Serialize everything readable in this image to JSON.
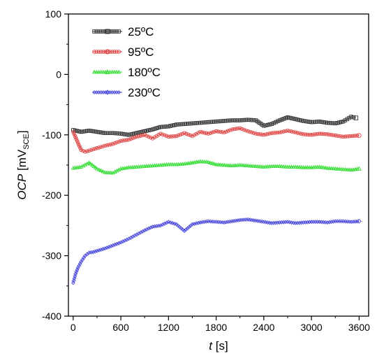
{
  "chart_data": {
    "type": "line",
    "xlabel": {
      "var": "t",
      "unit": " [s]"
    },
    "ylabel": {
      "var": "OCP",
      "pre": " [mV",
      "sub": "SCE",
      "post": "]"
    },
    "xlim": [
      -60,
      3720
    ],
    "ylim": [
      -400,
      100
    ],
    "xticks": [
      0,
      600,
      1200,
      1800,
      2400,
      3000,
      3600
    ],
    "xtick_labels": [
      "0",
      "600",
      "1200",
      "1800",
      "2400",
      "3000",
      "3600"
    ],
    "yticks": [
      100,
      0,
      -100,
      -200,
      -300,
      -400
    ],
    "ytick_labels": [
      "100",
      "0",
      "-100",
      "-200",
      "-300",
      "-400"
    ],
    "legend": "top-left",
    "grid": false,
    "series": [
      {
        "name": "25ºC",
        "color": "#333333",
        "marker": "square",
        "x": [
          0,
          100,
          200,
          300,
          400,
          500,
          600,
          700,
          800,
          900,
          1000,
          1100,
          1200,
          1300,
          1400,
          1500,
          1600,
          1700,
          1800,
          1900,
          2000,
          2100,
          2200,
          2300,
          2400,
          2500,
          2600,
          2700,
          2800,
          2900,
          3000,
          3100,
          3200,
          3300,
          3400,
          3500,
          3560
        ],
        "y": [
          -92,
          -95,
          -93,
          -95,
          -97,
          -97,
          -98,
          -100,
          -97,
          -94,
          -91,
          -87,
          -86,
          -83,
          -82,
          -81,
          -80,
          -79,
          -78,
          -77,
          -76,
          -76,
          -75,
          -76,
          -85,
          -82,
          -76,
          -71,
          -74,
          -77,
          -79,
          -78,
          -80,
          -81,
          -78,
          -70,
          -72
        ]
      },
      {
        "name": "95ºC",
        "color": "#e04040",
        "marker": "circle",
        "x": [
          0,
          50,
          100,
          150,
          200,
          300,
          400,
          500,
          600,
          700,
          800,
          900,
          1000,
          1100,
          1200,
          1300,
          1400,
          1500,
          1600,
          1700,
          1800,
          1900,
          2000,
          2100,
          2200,
          2300,
          2400,
          2500,
          2600,
          2700,
          2800,
          2900,
          3000,
          3100,
          3200,
          3300,
          3400,
          3500,
          3600
        ],
        "y": [
          -95,
          -110,
          -125,
          -128,
          -126,
          -122,
          -118,
          -115,
          -110,
          -108,
          -103,
          -100,
          -106,
          -98,
          -103,
          -102,
          -97,
          -102,
          -95,
          -98,
          -94,
          -96,
          -91,
          -89,
          -94,
          -98,
          -100,
          -97,
          -96,
          -93,
          -96,
          -99,
          -100,
          -98,
          -99,
          -101,
          -103,
          -102,
          -101
        ]
      },
      {
        "name": "180ºC",
        "color": "#33dd33",
        "marker": "triangle",
        "x": [
          0,
          100,
          200,
          300,
          400,
          500,
          600,
          700,
          800,
          900,
          1000,
          1100,
          1200,
          1300,
          1400,
          1500,
          1600,
          1700,
          1800,
          1900,
          2000,
          2100,
          2200,
          2300,
          2400,
          2500,
          2600,
          2700,
          2800,
          2900,
          3000,
          3100,
          3200,
          3300,
          3400,
          3500,
          3600
        ],
        "y": [
          -155,
          -153,
          -146,
          -156,
          -162,
          -163,
          -156,
          -154,
          -153,
          -152,
          -151,
          -150,
          -149,
          -149,
          -148,
          -146,
          -144,
          -145,
          -149,
          -150,
          -151,
          -150,
          -151,
          -152,
          -153,
          -152,
          -152,
          -153,
          -153,
          -154,
          -154,
          -153,
          -155,
          -156,
          -157,
          -158,
          -156
        ]
      },
      {
        "name": "230ºC",
        "color": "#4444dd",
        "marker": "diamond",
        "x": [
          0,
          30,
          60,
          100,
          150,
          200,
          250,
          300,
          400,
          500,
          600,
          700,
          800,
          900,
          1000,
          1100,
          1200,
          1300,
          1400,
          1500,
          1600,
          1700,
          1800,
          1900,
          2000,
          2100,
          2200,
          2300,
          2400,
          2500,
          2600,
          2700,
          2800,
          2900,
          3000,
          3100,
          3200,
          3300,
          3400,
          3500,
          3600
        ],
        "y": [
          -345,
          -330,
          -320,
          -310,
          -300,
          -295,
          -294,
          -292,
          -288,
          -283,
          -278,
          -272,
          -265,
          -258,
          -252,
          -250,
          -244,
          -248,
          -259,
          -248,
          -245,
          -243,
          -244,
          -245,
          -243,
          -241,
          -240,
          -242,
          -244,
          -246,
          -245,
          -244,
          -246,
          -245,
          -244,
          -244,
          -245,
          -243,
          -243,
          -244,
          -243
        ]
      }
    ]
  }
}
